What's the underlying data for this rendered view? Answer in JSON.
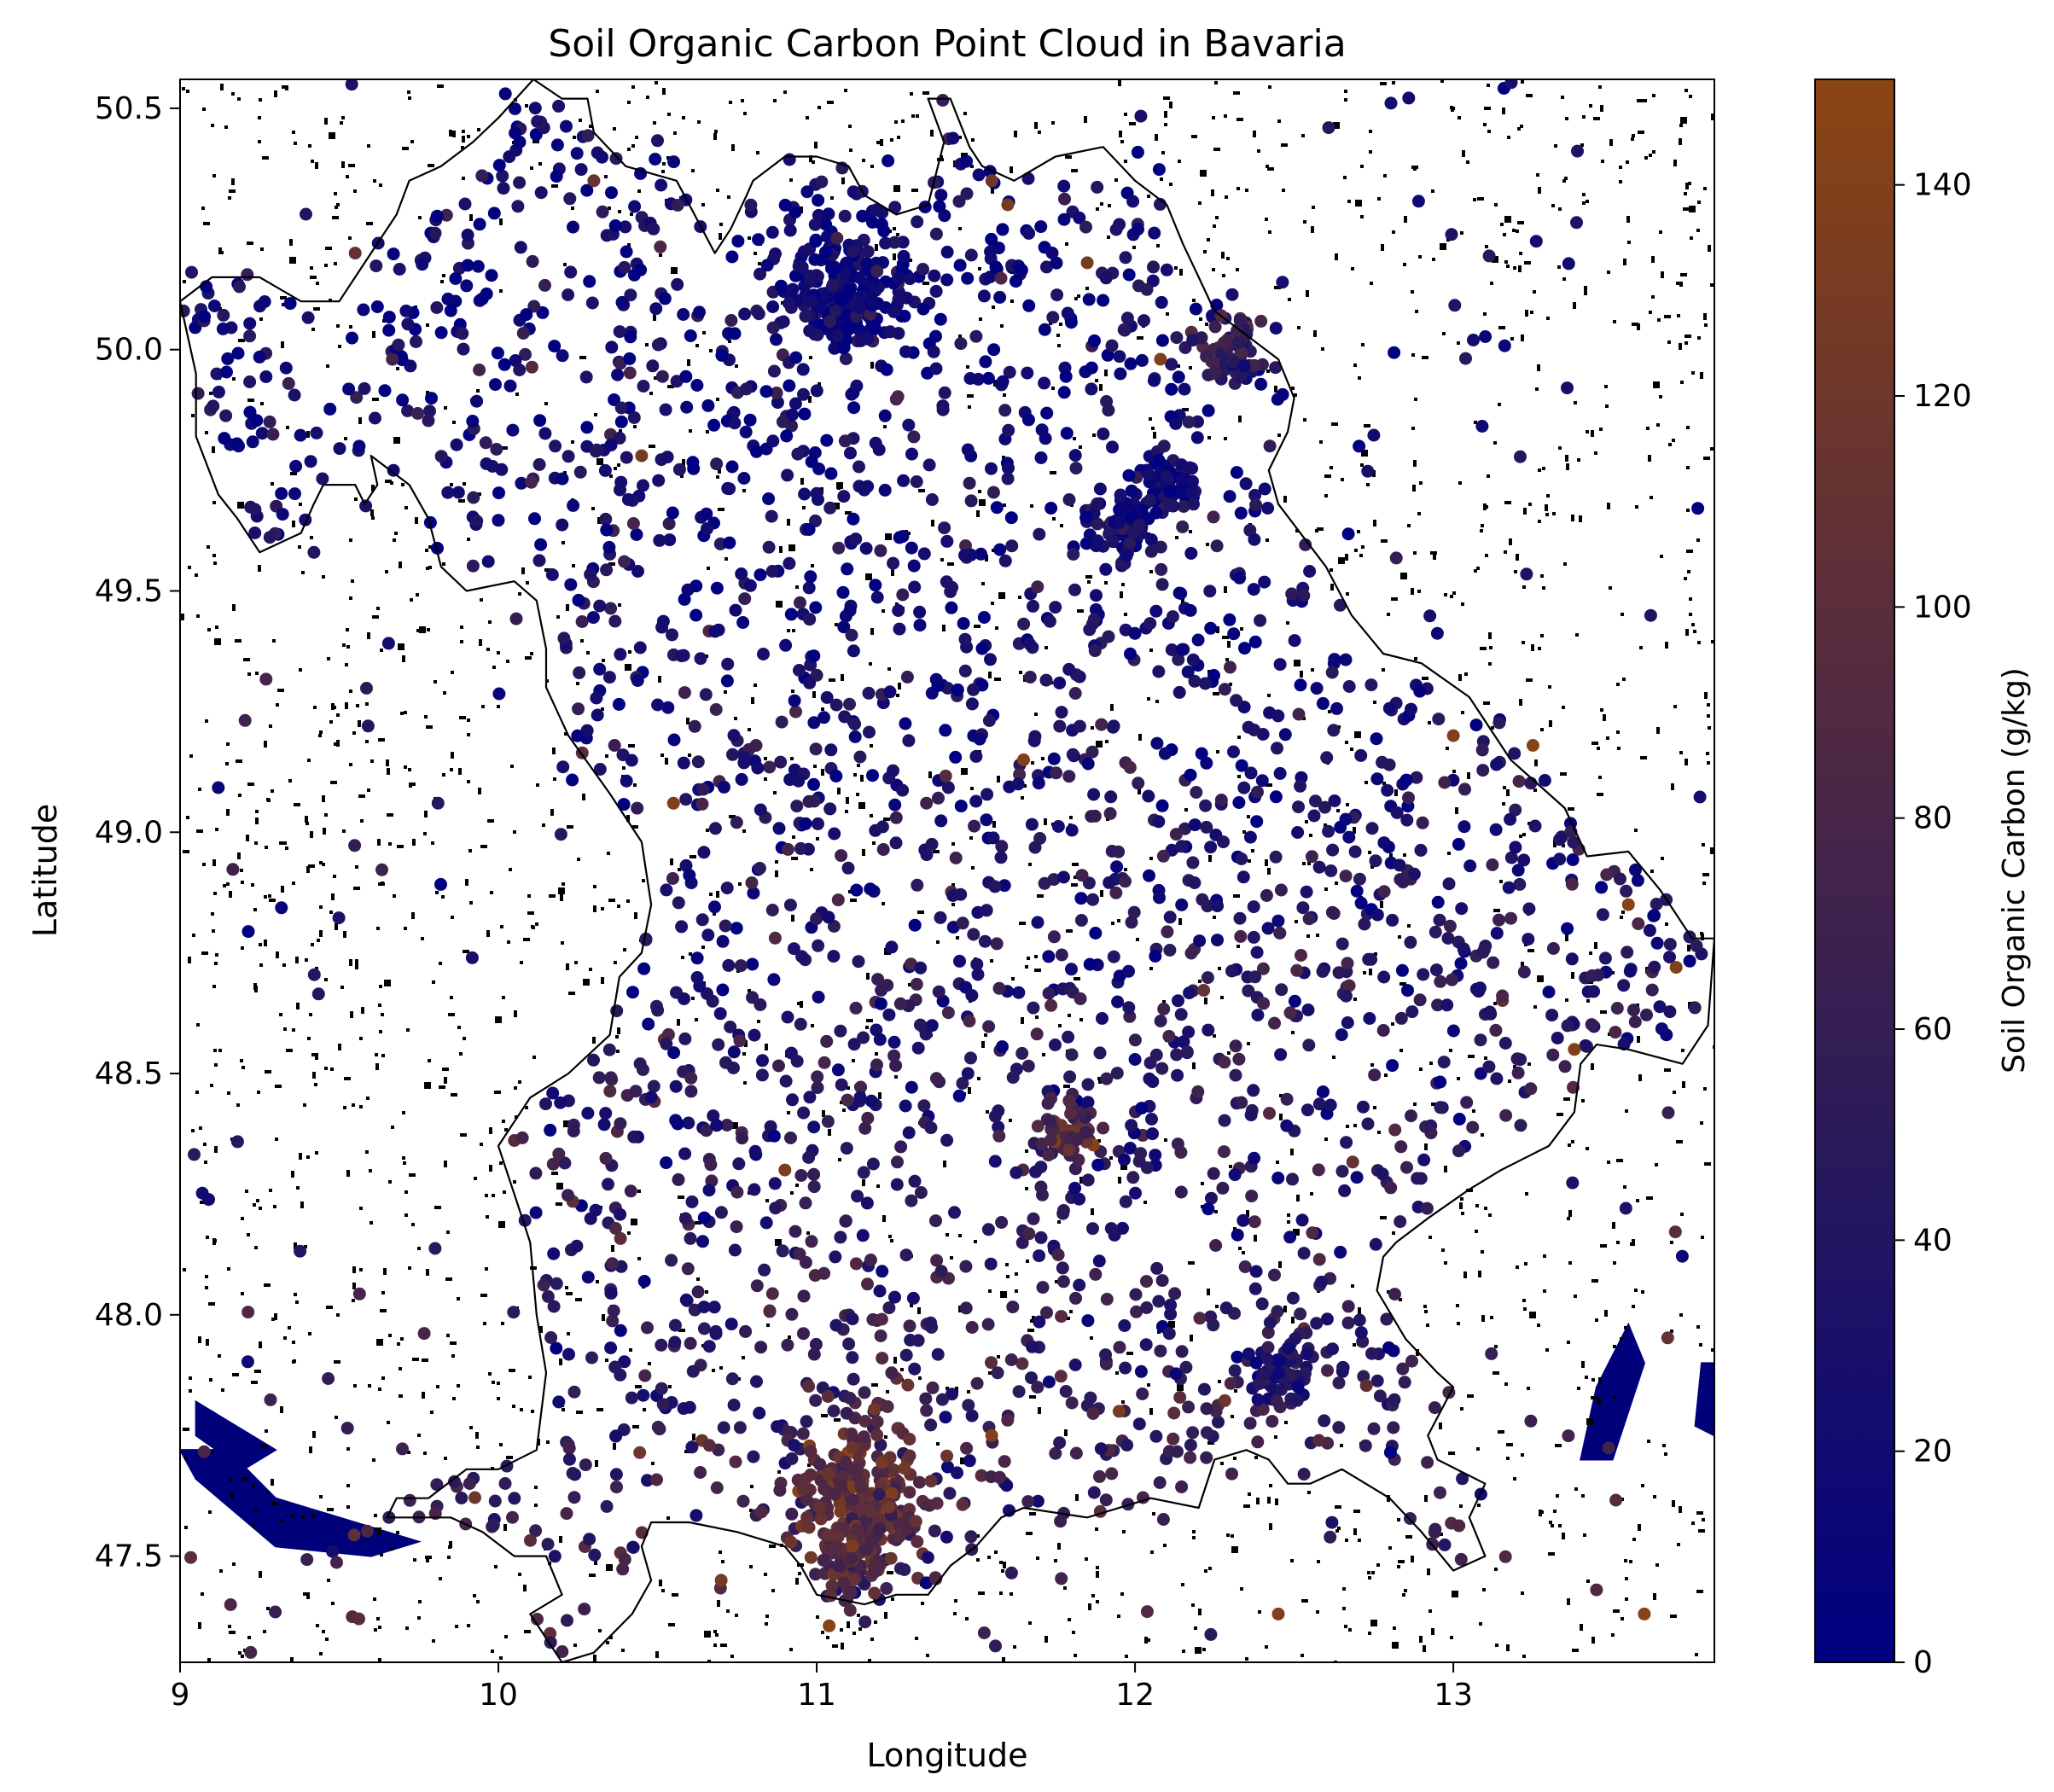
{
  "chart_data": {
    "type": "scatter",
    "title": "Soil Organic Carbon Point Cloud in Bavaria",
    "xlabel": "Longitude",
    "ylabel": "Latitude",
    "xlim": [
      9.0,
      13.82
    ],
    "ylim": [
      47.28,
      50.56
    ],
    "x_ticks": [
      9,
      10,
      11,
      12,
      13
    ],
    "x_tick_labels": [
      "9",
      "10",
      "11",
      "12",
      "13"
    ],
    "y_ticks": [
      47.5,
      48.0,
      48.5,
      49.0,
      49.5,
      50.0,
      50.5
    ],
    "y_tick_labels": [
      "47.5",
      "48.0",
      "48.5",
      "49.0",
      "49.5",
      "50.0",
      "50.5"
    ],
    "grid": false,
    "colorbar": {
      "label": "Soil Organic Carbon (g/kg)",
      "range": [
        0,
        150
      ],
      "ticks": [
        0,
        20,
        40,
        60,
        80,
        100,
        120,
        140
      ],
      "tick_labels": [
        "0",
        "20",
        "40",
        "60",
        "80",
        "100",
        "120",
        "140"
      ],
      "colors": [
        "#000080",
        "#2a1a5a",
        "#5a2d3c",
        "#8b4513"
      ]
    },
    "clusters": [
      {
        "lon": 11.1,
        "lat": 50.12,
        "soc": 15,
        "note": "dense"
      },
      {
        "lon": 12.1,
        "lat": 49.72,
        "soc": 20
      },
      {
        "lon": 11.95,
        "lat": 49.63,
        "soc": 20
      },
      {
        "lon": 12.3,
        "lat": 50.0,
        "soc": 55
      },
      {
        "lon": 11.8,
        "lat": 48.38,
        "soc": 90
      },
      {
        "lon": 12.45,
        "lat": 47.88,
        "soc": 35
      },
      {
        "lon": 11.15,
        "lat": 47.62,
        "soc": 100,
        "note": "dense"
      },
      {
        "lon": 11.1,
        "lat": 47.48,
        "soc": 90
      }
    ],
    "sample_points": [
      {
        "lon": 9.55,
        "lat": 50.2,
        "soc": 110
      },
      {
        "lon": 10.3,
        "lat": 50.35,
        "soc": 115
      },
      {
        "lon": 11.55,
        "lat": 50.35,
        "soc": 120
      },
      {
        "lon": 11.6,
        "lat": 50.3,
        "soc": 130
      },
      {
        "lon": 11.85,
        "lat": 50.18,
        "soc": 130
      },
      {
        "lon": 12.08,
        "lat": 49.98,
        "soc": 140
      },
      {
        "lon": 10.45,
        "lat": 49.78,
        "soc": 130
      },
      {
        "lon": 10.55,
        "lat": 49.06,
        "soc": 140
      },
      {
        "lon": 11.65,
        "lat": 49.15,
        "soc": 140
      },
      {
        "lon": 13.0,
        "lat": 49.2,
        "soc": 140
      },
      {
        "lon": 13.25,
        "lat": 49.18,
        "soc": 145
      },
      {
        "lon": 13.55,
        "lat": 48.85,
        "soc": 145
      },
      {
        "lon": 13.7,
        "lat": 48.72,
        "soc": 140
      },
      {
        "lon": 13.38,
        "lat": 48.55,
        "soc": 140
      },
      {
        "lon": 13.6,
        "lat": 47.38,
        "soc": 145
      },
      {
        "lon": 10.9,
        "lat": 48.3,
        "soc": 135
      },
      {
        "lon": 11.55,
        "lat": 47.75,
        "soc": 140
      },
      {
        "lon": 12.45,
        "lat": 47.38,
        "soc": 140
      },
      {
        "lon": 11.95,
        "lat": 47.8,
        "soc": 130
      },
      {
        "lon": 10.7,
        "lat": 47.45,
        "soc": 130
      }
    ],
    "water": [
      {
        "name": "Bodensee",
        "points": [
          [
            9.0,
            47.72
          ],
          [
            9.15,
            47.72
          ],
          [
            9.3,
            47.62
          ],
          [
            9.5,
            47.58
          ],
          [
            9.75,
            47.53
          ],
          [
            9.6,
            47.5
          ],
          [
            9.3,
            47.52
          ],
          [
            9.05,
            47.66
          ]
        ]
      },
      {
        "points": [
          [
            9.05,
            47.82
          ],
          [
            9.3,
            47.72
          ],
          [
            9.2,
            47.68
          ],
          [
            9.05,
            47.75
          ]
        ]
      },
      {
        "points": [
          [
            13.55,
            47.98
          ],
          [
            13.45,
            47.85
          ],
          [
            13.4,
            47.7
          ],
          [
            13.5,
            47.7
          ],
          [
            13.6,
            47.9
          ]
        ]
      },
      {
        "points": [
          [
            13.78,
            47.9
          ],
          [
            13.82,
            47.9
          ],
          [
            13.82,
            47.75
          ],
          [
            13.76,
            47.77
          ]
        ]
      }
    ],
    "boundary": [
      [
        10.11,
        50.56
      ],
      [
        10.2,
        50.52
      ],
      [
        10.28,
        50.52
      ],
      [
        10.3,
        50.45
      ],
      [
        10.4,
        50.38
      ],
      [
        10.56,
        50.35
      ],
      [
        10.68,
        50.2
      ],
      [
        10.73,
        50.25
      ],
      [
        10.78,
        50.32
      ],
      [
        10.8,
        50.35
      ],
      [
        10.9,
        50.4
      ],
      [
        11.0,
        50.4
      ],
      [
        11.1,
        50.38
      ],
      [
        11.15,
        50.32
      ],
      [
        11.25,
        50.28
      ],
      [
        11.35,
        50.3
      ],
      [
        11.4,
        50.43
      ],
      [
        11.35,
        50.52
      ],
      [
        11.42,
        50.52
      ],
      [
        11.48,
        50.42
      ],
      [
        11.52,
        50.38
      ],
      [
        11.62,
        50.35
      ],
      [
        11.75,
        50.4
      ],
      [
        11.9,
        50.42
      ],
      [
        12.0,
        50.35
      ],
      [
        12.1,
        50.3
      ],
      [
        12.15,
        50.22
      ],
      [
        12.2,
        50.15
      ],
      [
        12.25,
        50.08
      ],
      [
        12.35,
        50.03
      ],
      [
        12.45,
        49.98
      ],
      [
        12.5,
        49.9
      ],
      [
        12.48,
        49.83
      ],
      [
        12.42,
        49.75
      ],
      [
        12.45,
        49.68
      ],
      [
        12.6,
        49.55
      ],
      [
        12.68,
        49.45
      ],
      [
        12.78,
        49.37
      ],
      [
        12.9,
        49.35
      ],
      [
        13.05,
        49.28
      ],
      [
        13.18,
        49.15
      ],
      [
        13.35,
        49.05
      ],
      [
        13.42,
        48.95
      ],
      [
        13.55,
        48.96
      ],
      [
        13.65,
        48.88
      ],
      [
        13.75,
        48.78
      ],
      [
        13.82,
        48.78
      ],
      [
        13.8,
        48.6
      ],
      [
        13.72,
        48.52
      ],
      [
        13.55,
        48.55
      ],
      [
        13.45,
        48.56
      ],
      [
        13.4,
        48.52
      ],
      [
        13.38,
        48.42
      ],
      [
        13.3,
        48.35
      ],
      [
        13.15,
        48.3
      ],
      [
        13.05,
        48.26
      ],
      [
        12.92,
        48.2
      ],
      [
        12.82,
        48.15
      ],
      [
        12.78,
        48.12
      ],
      [
        12.76,
        48.05
      ],
      [
        12.85,
        47.95
      ],
      [
        12.95,
        47.88
      ],
      [
        13.0,
        47.85
      ],
      [
        12.92,
        47.75
      ],
      [
        12.95,
        47.7
      ],
      [
        13.1,
        47.65
      ],
      [
        13.05,
        47.58
      ],
      [
        13.1,
        47.5
      ],
      [
        13.0,
        47.47
      ],
      [
        12.9,
        47.55
      ],
      [
        12.8,
        47.62
      ],
      [
        12.65,
        47.68
      ],
      [
        12.55,
        47.65
      ],
      [
        12.48,
        47.65
      ],
      [
        12.42,
        47.7
      ],
      [
        12.35,
        47.72
      ],
      [
        12.25,
        47.7
      ],
      [
        12.2,
        47.6
      ],
      [
        12.05,
        47.62
      ],
      [
        11.85,
        47.58
      ],
      [
        11.65,
        47.6
      ],
      [
        11.58,
        47.58
      ],
      [
        11.5,
        47.52
      ],
      [
        11.42,
        47.48
      ],
      [
        11.35,
        47.42
      ],
      [
        11.25,
        47.42
      ],
      [
        11.15,
        47.4
      ],
      [
        11.0,
        47.42
      ],
      [
        10.95,
        47.48
      ],
      [
        10.9,
        47.52
      ],
      [
        10.75,
        47.55
      ],
      [
        10.6,
        47.57
      ],
      [
        10.48,
        47.57
      ],
      [
        10.45,
        47.52
      ],
      [
        10.48,
        47.45
      ],
      [
        10.42,
        47.38
      ],
      [
        10.3,
        47.3
      ],
      [
        10.2,
        47.28
      ],
      [
        10.1,
        47.38
      ],
      [
        10.2,
        47.42
      ],
      [
        10.15,
        47.5
      ],
      [
        10.05,
        47.5
      ],
      [
        9.95,
        47.55
      ],
      [
        9.85,
        47.58
      ],
      [
        9.75,
        47.58
      ],
      [
        9.65,
        47.58
      ],
      [
        9.68,
        47.62
      ],
      [
        9.78,
        47.62
      ],
      [
        9.9,
        47.68
      ],
      [
        10.0,
        47.68
      ],
      [
        10.12,
        47.72
      ],
      [
        10.15,
        47.88
      ],
      [
        10.12,
        48.0
      ],
      [
        10.1,
        48.15
      ],
      [
        10.05,
        48.25
      ],
      [
        10.0,
        48.35
      ],
      [
        10.1,
        48.45
      ],
      [
        10.22,
        48.5
      ],
      [
        10.35,
        48.58
      ],
      [
        10.38,
        48.7
      ],
      [
        10.45,
        48.75
      ],
      [
        10.48,
        48.85
      ],
      [
        10.45,
        48.98
      ],
      [
        10.35,
        49.08
      ],
      [
        10.22,
        49.2
      ],
      [
        10.15,
        49.3
      ],
      [
        10.15,
        49.38
      ],
      [
        10.12,
        49.48
      ],
      [
        10.05,
        49.52
      ],
      [
        9.9,
        49.5
      ],
      [
        9.82,
        49.55
      ],
      [
        9.78,
        49.65
      ],
      [
        9.72,
        49.72
      ],
      [
        9.6,
        49.78
      ],
      [
        9.62,
        49.72
      ],
      [
        9.58,
        49.68
      ],
      [
        9.55,
        49.72
      ],
      [
        9.45,
        49.72
      ],
      [
        9.42,
        49.68
      ],
      [
        9.38,
        49.62
      ],
      [
        9.25,
        49.58
      ],
      [
        9.18,
        49.65
      ],
      [
        9.12,
        49.7
      ],
      [
        9.05,
        49.82
      ],
      [
        9.05,
        49.95
      ],
      [
        9.0,
        50.1
      ],
      [
        9.1,
        50.15
      ],
      [
        9.25,
        50.15
      ],
      [
        9.38,
        50.1
      ],
      [
        9.5,
        50.1
      ],
      [
        9.6,
        50.2
      ],
      [
        9.68,
        50.28
      ],
      [
        9.72,
        50.35
      ],
      [
        9.82,
        50.38
      ],
      [
        9.92,
        50.43
      ],
      [
        10.0,
        50.48
      ],
      [
        10.11,
        50.56
      ]
    ]
  }
}
